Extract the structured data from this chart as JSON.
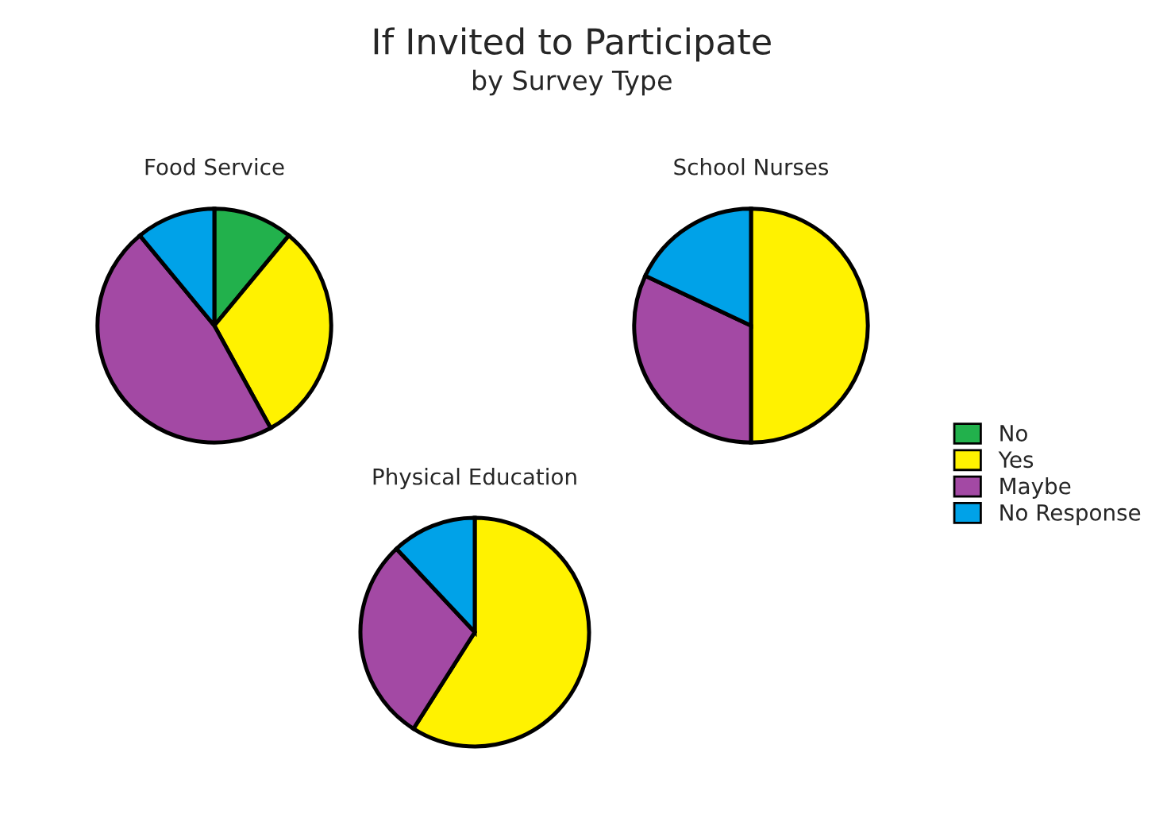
{
  "chart_data": [
    {
      "type": "pie",
      "title": "Food Service",
      "annotations": [
        "If Invited to Participate",
        "by Survey Type"
      ],
      "categories": [
        "No",
        "Yes",
        "Maybe",
        "No Response"
      ],
      "values": [
        11,
        31,
        47,
        11
      ],
      "colors": [
        "#22b14c",
        "#fff200",
        "#a349a4",
        "#00a2e8"
      ],
      "legend": "right"
    },
    {
      "type": "pie",
      "title": "School Nurses",
      "categories": [
        null,
        null,
        null
      ],
      "values": [
        50,
        32,
        18
      ],
      "colors": [
        "#fff200",
        "#a349a4",
        "#00a2e8"
      ]
    },
    {
      "type": "pie",
      "title": "Physical Education",
      "categories": [
        null,
        null,
        null
      ],
      "values": [
        59,
        29,
        12
      ],
      "colors": [
        "#fff200",
        "#a349a4",
        "#00a2e8"
      ]
    }
  ]
}
